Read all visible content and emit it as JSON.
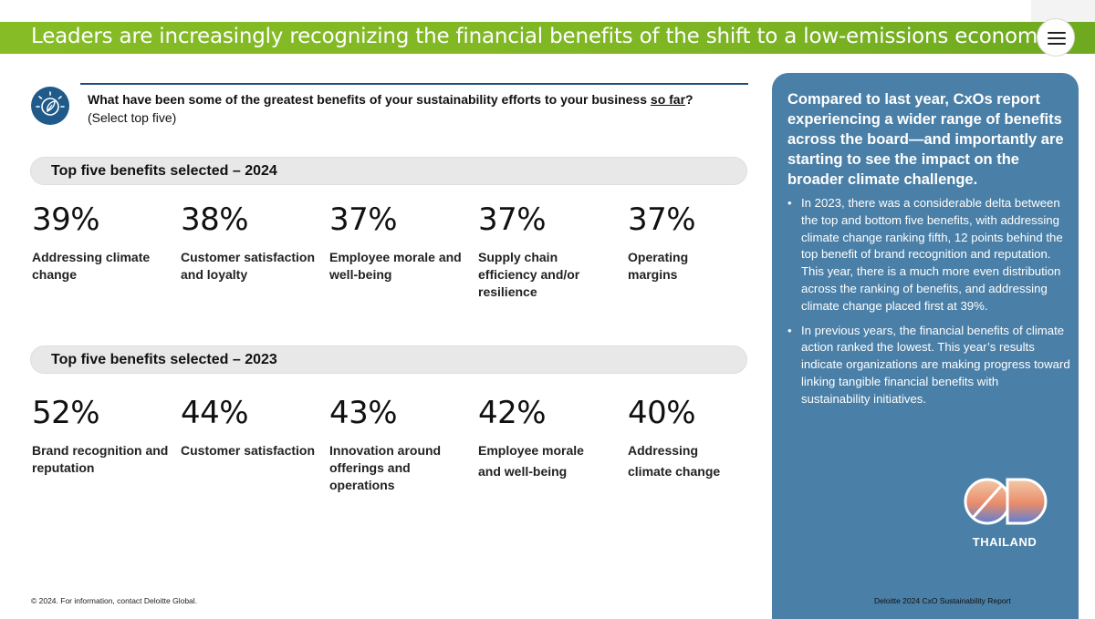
{
  "header": {
    "title": "Leaders are increasingly recognizing the financial benefits of the shift to a low-emissions economy",
    "menu_icon": "hamburger-menu-icon"
  },
  "question": {
    "icon": "leaf-lightbulb-icon",
    "text_before": "What have been some of the greatest benefits of your sustainability efforts to your business ",
    "text_underlined": "so far",
    "text_after": "?",
    "note": "(Select top five)"
  },
  "sections": [
    {
      "heading": "Top five benefits selected – 2024",
      "stats": [
        {
          "value": "39%",
          "label": "Addressing climate change"
        },
        {
          "value": "38%",
          "label": "Customer satisfaction and loyalty"
        },
        {
          "value": "37%",
          "label": "Employee morale and well-being"
        },
        {
          "value": "37%",
          "label": "Supply chain efficiency and/or resilience"
        },
        {
          "value": "37%",
          "label": "Operating margins"
        }
      ]
    },
    {
      "heading": "Top five benefits selected – 2023",
      "stats": [
        {
          "value": "52%",
          "label": "Brand recognition and reputation"
        },
        {
          "value": "44%",
          "label": "Customer satisfaction"
        },
        {
          "value": "43%",
          "label": "Innovation around offerings and operations"
        },
        {
          "value": "42%",
          "label": "Employee morale and well-being"
        },
        {
          "value": "40%",
          "label": "Addressing climate change"
        }
      ]
    }
  ],
  "sidebar": {
    "heading": "Compared to last year, CxOs report experiencing a wider range of benefits across the board—and importantly are starting to see the impact on the broader climate challenge.",
    "bullets": [
      "In 2023, there was a considerable delta between the top and bottom five benefits, with addressing climate change ranking fifth, 12 points behind the top benefit of brand recognition and reputation. This year, there is a much more even distribution across the ranking of benefits, and addressing climate change placed first at 39%.",
      "In previous years, the financial benefits of climate action ranked the lowest.  This year’s results indicate organizations are making progress toward linking tangible financial benefits with sustainability initiatives."
    ],
    "logo_text": "THAILAND"
  },
  "footer": {
    "left": "© 2024. For information, contact Deloitte Global.",
    "right": "Deloitte 2024 CxO Sustainability Report"
  },
  "colors": {
    "title_green": "#86bc25",
    "panel_blue": "#4a7fa7",
    "rule_navy": "#1f4e79"
  }
}
